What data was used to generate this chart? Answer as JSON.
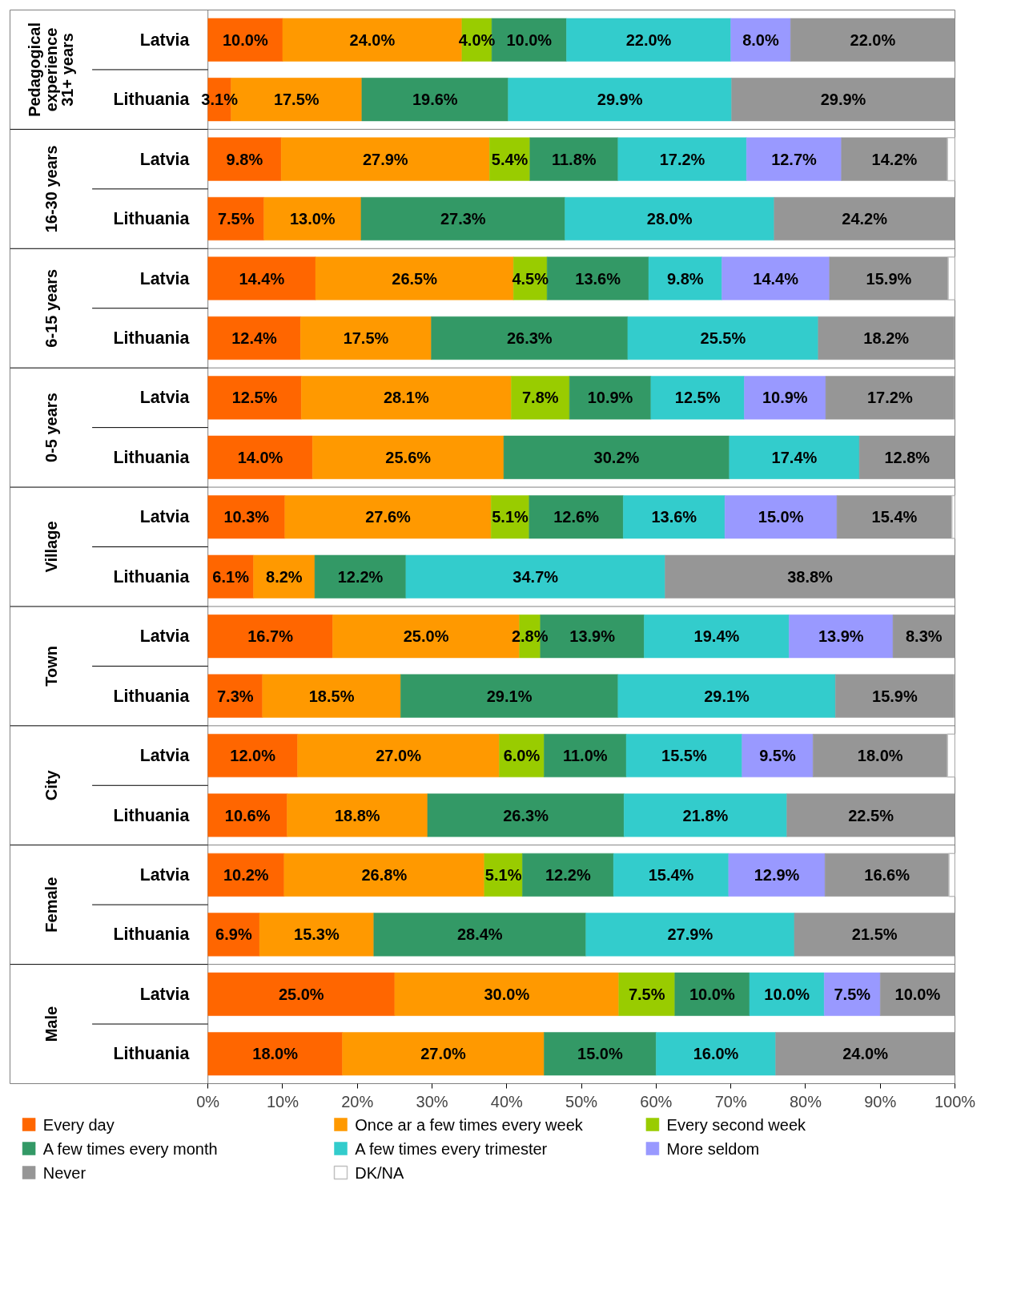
{
  "chart_data": {
    "type": "bar",
    "orientation": "horizontal",
    "stacked": true,
    "categories": [
      "Latvia",
      "Lithuania",
      "Latvia",
      "Lithuania",
      "Latvia",
      "Lithuania",
      "Latvia",
      "Lithuania",
      "Latvia",
      "Lithuania",
      "Latvia",
      "Lithuania",
      "Latvia",
      "Lithuania",
      "Latvia",
      "Lithuania",
      "Latvia",
      "Lithuania"
    ],
    "annotations": [
      "Pedagogical experience 31+ years",
      "16-30 years",
      "6-15 years",
      "0-5 years",
      "Village",
      "Town",
      "City",
      "Female",
      "Male"
    ],
    "xlim": [
      0,
      100
    ],
    "xticks": [
      {
        "value": 0,
        "label": "0%"
      },
      {
        "value": 10,
        "label": "10%"
      },
      {
        "value": 20,
        "label": "20%"
      },
      {
        "value": 30,
        "label": "30%"
      },
      {
        "value": 40,
        "label": "40%"
      },
      {
        "value": 50,
        "label": "50%"
      },
      {
        "value": 60,
        "label": "60%"
      },
      {
        "value": 70,
        "label": "70%"
      },
      {
        "value": 80,
        "label": "80%"
      },
      {
        "value": 90,
        "label": "90%"
      },
      {
        "value": 100,
        "label": "100%"
      }
    ],
    "grid": false,
    "legend": "bottom",
    "series": [
      {
        "name": "Every day",
        "color": "#ff6600",
        "values": [
          10.0,
          3.1,
          9.8,
          7.5,
          14.4,
          12.4,
          12.5,
          14.0,
          10.3,
          6.1,
          16.7,
          7.3,
          12.0,
          10.6,
          10.2,
          6.9,
          25.0,
          18.0
        ],
        "value_labels": [
          "10.0%",
          "3.1%",
          "9.8%",
          "7.5%",
          "14.4%",
          "12.4%",
          "12.5%",
          "14.0%",
          "10.3%",
          "6.1%",
          "16.7%",
          "7.3%",
          "12.0%",
          "10.6%",
          "10.2%",
          "6.9%",
          "25.0%",
          "18.0%"
        ]
      },
      {
        "name": "Once ar a few times every week",
        "color": "#ff9900",
        "values": [
          24.0,
          17.5,
          27.9,
          13.0,
          26.5,
          17.5,
          28.1,
          25.6,
          27.6,
          8.2,
          25.0,
          18.5,
          27.0,
          18.8,
          26.8,
          15.3,
          30.0,
          27.0
        ],
        "value_labels": [
          "24.0%",
          "17.5%",
          "27.9%",
          "13.0%",
          "26.5%",
          "17.5%",
          "28.1%",
          "25.6%",
          "27.6%",
          "8.2%",
          "25.0%",
          "18.5%",
          "27.0%",
          "18.8%",
          "26.8%",
          "15.3%",
          "30.0%",
          "27.0%"
        ]
      },
      {
        "name": "Every second week",
        "color": "#99cc00",
        "values": [
          4.0,
          null,
          5.4,
          null,
          4.5,
          null,
          7.8,
          null,
          5.1,
          null,
          2.8,
          null,
          6.0,
          null,
          5.1,
          null,
          7.5,
          null
        ],
        "value_labels": [
          "4.0%",
          null,
          "5.4%",
          null,
          "4.5%",
          null,
          "7.8%",
          null,
          "5.1%",
          null,
          "2.8%",
          null,
          "6.0%",
          null,
          "5.1%",
          null,
          "7.5%",
          null
        ]
      },
      {
        "name": "A few times every month",
        "color": "#339966",
        "values": [
          10.0,
          19.6,
          11.8,
          27.3,
          13.6,
          26.3,
          10.9,
          30.2,
          12.6,
          12.2,
          13.9,
          29.1,
          11.0,
          26.3,
          12.2,
          28.4,
          10.0,
          15.0
        ],
        "value_labels": [
          "10.0%",
          "19.6%",
          "11.8%",
          "27.3%",
          "13.6%",
          "26.3%",
          "10.9%",
          "30.2%",
          "12.6%",
          "12.2%",
          "13.9%",
          "29.1%",
          "11.0%",
          "26.3%",
          "12.2%",
          "28.4%",
          "10.0%",
          "15.0%"
        ]
      },
      {
        "name": "A few times every trimester",
        "color": "#33cccc",
        "values": [
          22.0,
          29.9,
          17.2,
          28.0,
          9.8,
          25.5,
          12.5,
          17.4,
          13.6,
          34.7,
          19.4,
          29.1,
          15.5,
          21.8,
          15.4,
          27.9,
          10.0,
          16.0
        ],
        "value_labels": [
          "22.0%",
          "29.9%",
          "17.2%",
          "28.0%",
          "9.8%",
          "25.5%",
          "12.5%",
          "17.4%",
          "13.6%",
          "34.7%",
          "19.4%",
          "29.1%",
          "15.5%",
          "21.8%",
          "15.4%",
          "27.9%",
          "10.0%",
          "16.0%"
        ]
      },
      {
        "name": "More seldom",
        "color": "#9999ff",
        "values": [
          8.0,
          null,
          12.7,
          null,
          14.4,
          null,
          10.9,
          null,
          15.0,
          null,
          13.9,
          null,
          9.5,
          null,
          12.9,
          null,
          7.5,
          null
        ],
        "value_labels": [
          "8.0%",
          null,
          "12.7%",
          null,
          "14.4%",
          null,
          "10.9%",
          null,
          "15.0%",
          null,
          "13.9%",
          null,
          "9.5%",
          null,
          "12.9%",
          null,
          "7.5%",
          null
        ]
      },
      {
        "name": "Never",
        "color": "#969696",
        "values": [
          22.0,
          29.9,
          14.2,
          24.2,
          15.9,
          18.2,
          17.2,
          12.8,
          15.4,
          38.8,
          8.3,
          15.9,
          18.0,
          22.5,
          16.6,
          21.5,
          10.0,
          24.0
        ],
        "value_labels": [
          "22.0%",
          "29.9%",
          "14.2%",
          "24.2%",
          "15.9%",
          "18.2%",
          "17.2%",
          "12.8%",
          "15.4%",
          "38.8%",
          "8.3%",
          "15.9%",
          "18.0%",
          "22.5%",
          "16.6%",
          "21.5%",
          "10.0%",
          "24.0%"
        ]
      },
      {
        "name": "DK/NA",
        "color": "#ffffff",
        "values": [
          null,
          null,
          1.0,
          null,
          0.9,
          null,
          null,
          null,
          0.4,
          null,
          null,
          null,
          1.0,
          null,
          0.8,
          null,
          null,
          null
        ]
      }
    ]
  }
}
